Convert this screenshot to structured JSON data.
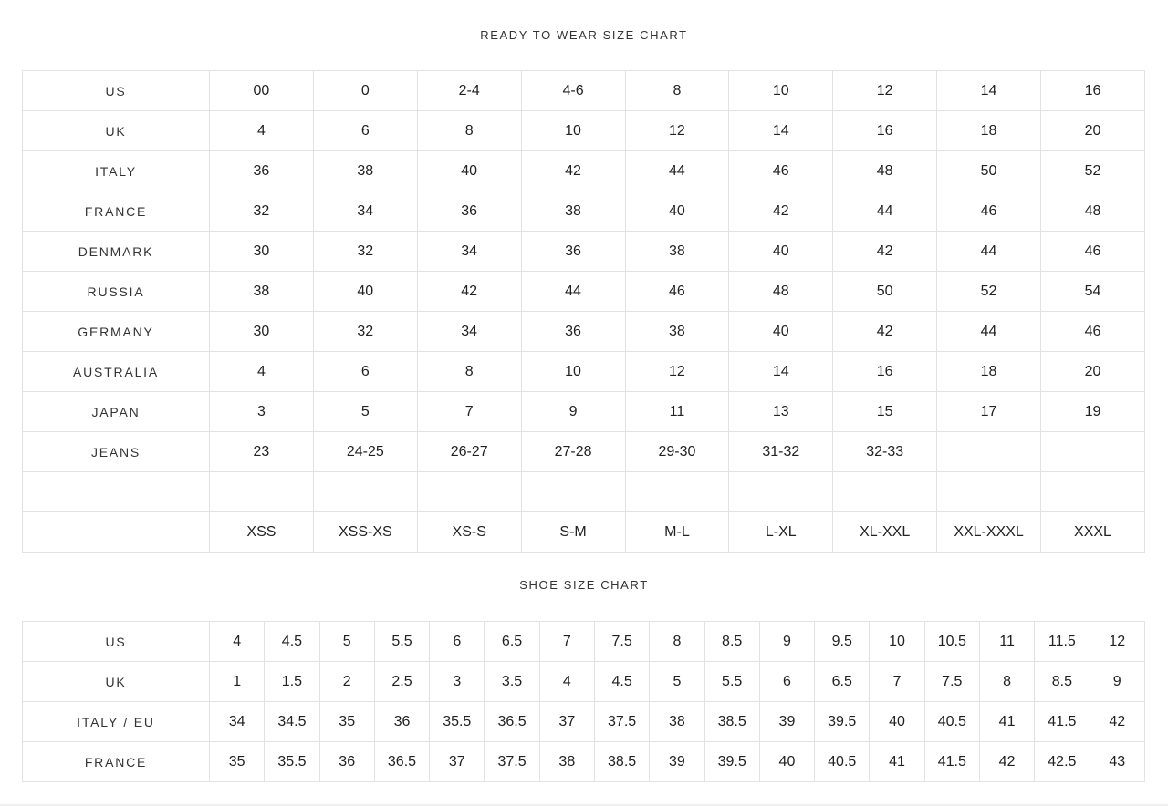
{
  "ready_to_wear": {
    "title": "READY TO WEAR SIZE CHART",
    "rows": [
      {
        "label": "US",
        "values": [
          "00",
          "0",
          "2-4",
          "4-6",
          "8",
          "10",
          "12",
          "14",
          "16"
        ]
      },
      {
        "label": "UK",
        "values": [
          "4",
          "6",
          "8",
          "10",
          "12",
          "14",
          "16",
          "18",
          "20"
        ]
      },
      {
        "label": "ITALY",
        "values": [
          "36",
          "38",
          "40",
          "42",
          "44",
          "46",
          "48",
          "50",
          "52"
        ]
      },
      {
        "label": "FRANCE",
        "values": [
          "32",
          "34",
          "36",
          "38",
          "40",
          "42",
          "44",
          "46",
          "48"
        ]
      },
      {
        "label": "DENMARK",
        "values": [
          "30",
          "32",
          "34",
          "36",
          "38",
          "40",
          "42",
          "44",
          "46"
        ]
      },
      {
        "label": "RUSSIA",
        "values": [
          "38",
          "40",
          "42",
          "44",
          "46",
          "48",
          "50",
          "52",
          "54"
        ]
      },
      {
        "label": "GERMANY",
        "values": [
          "30",
          "32",
          "34",
          "36",
          "38",
          "40",
          "42",
          "44",
          "46"
        ]
      },
      {
        "label": "AUSTRALIA",
        "values": [
          "4",
          "6",
          "8",
          "10",
          "12",
          "14",
          "16",
          "18",
          "20"
        ]
      },
      {
        "label": "JAPAN",
        "values": [
          "3",
          "5",
          "7",
          "9",
          "11",
          "13",
          "15",
          "17",
          "19"
        ]
      },
      {
        "label": "JEANS",
        "values": [
          "23",
          "24-25",
          "26-27",
          "27-28",
          "29-30",
          "31-32",
          "32-33",
          "",
          ""
        ]
      },
      {
        "label": "",
        "values": [
          "",
          "",
          "",
          "",
          "",
          "",
          "",
          "",
          ""
        ]
      },
      {
        "label": "",
        "values": [
          "XSS",
          "XSS-XS",
          "XS-S",
          "S-M",
          "M-L",
          "L-XL",
          "XL-XXL",
          "XXL-XXXL",
          "XXXL"
        ]
      }
    ]
  },
  "shoe": {
    "title": "SHOE SIZE CHART",
    "rows": [
      {
        "label": "US",
        "values": [
          "4",
          "4.5",
          "5",
          "5.5",
          "6",
          "6.5",
          "7",
          "7.5",
          "8",
          "8.5",
          "9",
          "9.5",
          "10",
          "10.5",
          "11",
          "11.5",
          "12"
        ]
      },
      {
        "label": "UK",
        "values": [
          "1",
          "1.5",
          "2",
          "2.5",
          "3",
          "3.5",
          "4",
          "4.5",
          "5",
          "5.5",
          "6",
          "6.5",
          "7",
          "7.5",
          "8",
          "8.5",
          "9"
        ]
      },
      {
        "label": "ITALY / EU",
        "values": [
          "34",
          "34.5",
          "35",
          "36",
          "35.5",
          "36.5",
          "37",
          "37.5",
          "38",
          "38.5",
          "39",
          "39.5",
          "40",
          "40.5",
          "41",
          "41.5",
          "42"
        ]
      },
      {
        "label": "FRANCE",
        "values": [
          "35",
          "35.5",
          "36",
          "36.5",
          "37",
          "37.5",
          "38",
          "38.5",
          "39",
          "39.5",
          "40",
          "40.5",
          "41",
          "41.5",
          "42",
          "42.5",
          "43"
        ]
      }
    ]
  }
}
